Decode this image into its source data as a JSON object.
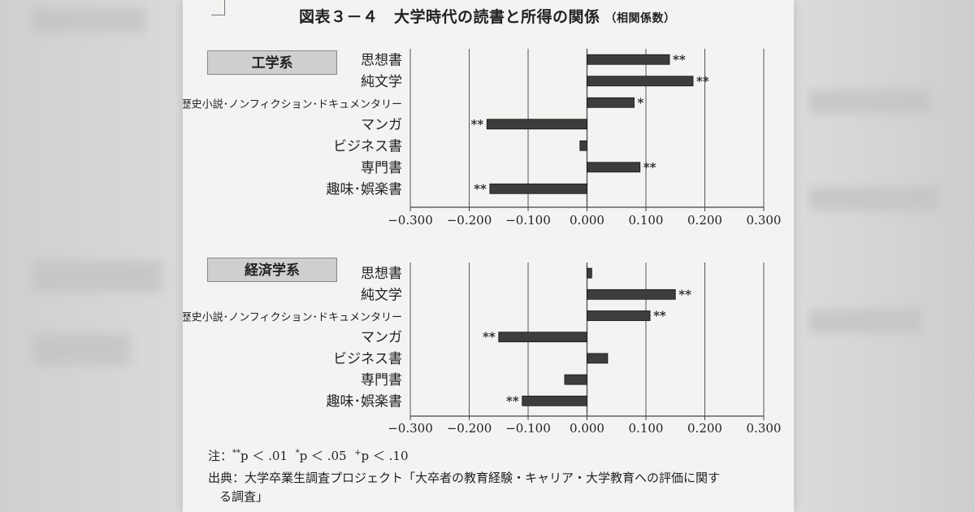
{
  "figure": {
    "title": "図表３－４　大学時代の読書と所得の関係",
    "subtitle": "（相関係数）"
  },
  "axis": {
    "range": [
      -0.3,
      0.3
    ],
    "ticks": [
      -0.3,
      -0.2,
      -0.1,
      0.0,
      0.1,
      0.2,
      0.3
    ],
    "tick_labels": [
      "−0.300",
      "−0.200",
      "−0.100",
      "0.000",
      "0.100",
      "0.200",
      "0.300"
    ]
  },
  "chart_data": [
    {
      "type": "bar",
      "orientation": "horizontal",
      "title": "工学系",
      "categories": [
        "思想書",
        "純文学",
        "歴史小説･ノンフィクション･ドキュメンタリー",
        "マンガ",
        "ビジネス書",
        "専門書",
        "趣味･娯楽書"
      ],
      "values": [
        0.14,
        0.18,
        0.08,
        -0.17,
        -0.012,
        0.09,
        -0.165
      ],
      "significance": [
        "**",
        "**",
        "*",
        "**",
        "",
        "**",
        "**"
      ],
      "xlim": [
        -0.3,
        0.3
      ],
      "grid": true
    },
    {
      "type": "bar",
      "orientation": "horizontal",
      "title": "経済学系",
      "categories": [
        "思想書",
        "純文学",
        "歴史小説･ノンフィクション･ドキュメンタリー",
        "マンガ",
        "ビジネス書",
        "専門書",
        "趣味･娯楽書"
      ],
      "values": [
        0.008,
        0.15,
        0.107,
        -0.15,
        0.035,
        -0.038,
        -0.11
      ],
      "significance": [
        "",
        "**",
        "**",
        "**",
        "",
        "",
        "**"
      ],
      "xlim": [
        -0.3,
        0.3
      ],
      "grid": true
    }
  ],
  "notes": {
    "note_prefix": "注：",
    "sig1_mark": "**",
    "sig1_text": "p ＜ .01",
    "sig2_mark": "*",
    "sig2_text": "p ＜ .05",
    "sig3_mark": "+",
    "sig3_text": "p ＜ .10",
    "source_line1": "出典：大学卒業生調査プロジェクト「大卒者の教育経験・キャリア・大学教育への評価に関す",
    "source_line2": "る調査」"
  }
}
